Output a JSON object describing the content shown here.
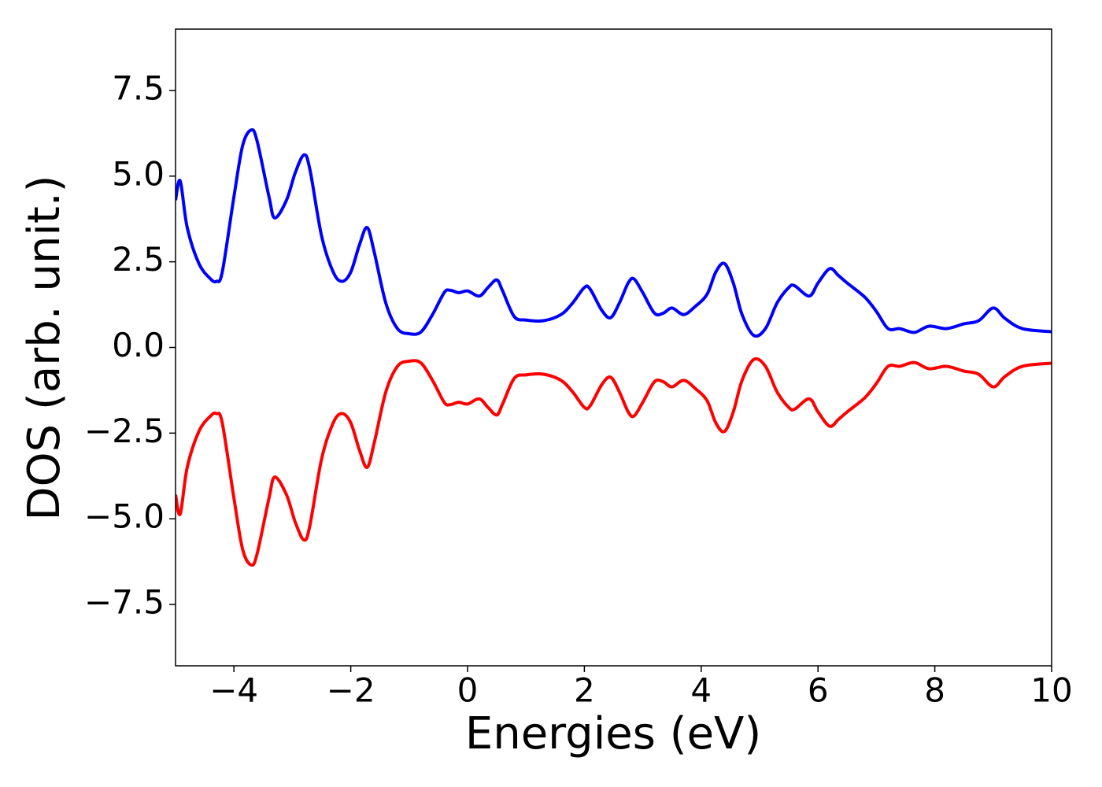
{
  "chart_data": {
    "type": "line",
    "x_label": "Energies (eV)",
    "y_label": "DOS (arb. unit.)",
    "x": [
      -5,
      -4.92,
      -4.8,
      -4.6,
      -4.4,
      -4.3,
      -4.2,
      -4.0,
      -3.85,
      -3.7,
      -3.6,
      -3.4,
      -3.3,
      -3.1,
      -2.95,
      -2.8,
      -2.7,
      -2.5,
      -2.3,
      -2.15,
      -2.0,
      -1.85,
      -1.72,
      -1.6,
      -1.4,
      -1.2,
      -1.0,
      -0.8,
      -0.6,
      -0.4,
      -0.3,
      -0.15,
      0.0,
      0.2,
      0.35,
      0.5,
      0.6,
      0.8,
      1.0,
      1.3,
      1.6,
      1.8,
      2.0,
      2.1,
      2.3,
      2.45,
      2.6,
      2.75,
      2.85,
      3.0,
      3.2,
      3.35,
      3.5,
      3.7,
      3.9,
      4.1,
      4.25,
      4.4,
      4.55,
      4.7,
      4.9,
      5.1,
      5.3,
      5.5,
      5.6,
      5.85,
      6.0,
      6.2,
      6.35,
      6.5,
      6.8,
      7.0,
      7.2,
      7.4,
      7.65,
      7.9,
      8.2,
      8.5,
      8.75,
      9.0,
      9.2,
      9.5,
      10
    ],
    "series": [
      {
        "color": "#0000ff",
        "values": [
          4.3,
          4.86,
          3.5,
          2.45,
          2.0,
          1.93,
          2.2,
          4.4,
          5.9,
          6.35,
          6.0,
          4.4,
          3.78,
          4.3,
          5.1,
          5.62,
          5.2,
          3.26,
          2.2,
          1.93,
          2.2,
          3.0,
          3.5,
          2.8,
          1.3,
          0.55,
          0.4,
          0.45,
          0.96,
          1.6,
          1.67,
          1.6,
          1.65,
          1.5,
          1.75,
          1.97,
          1.65,
          0.9,
          0.8,
          0.78,
          0.96,
          1.3,
          1.75,
          1.7,
          1.08,
          0.87,
          1.3,
          1.88,
          2.0,
          1.6,
          1.0,
          1.0,
          1.15,
          0.96,
          1.2,
          1.55,
          2.2,
          2.45,
          1.88,
          0.96,
          0.35,
          0.55,
          1.3,
          1.75,
          1.8,
          1.5,
          1.88,
          2.3,
          2.1,
          1.88,
          1.47,
          1.05,
          0.55,
          0.55,
          0.44,
          0.62,
          0.55,
          0.69,
          0.78,
          1.15,
          0.85,
          0.55,
          0.46
        ]
      },
      {
        "color": "#ff0000",
        "values": [
          -4.3,
          -4.86,
          -3.5,
          -2.45,
          -2.0,
          -1.93,
          -2.2,
          -4.4,
          -5.9,
          -6.35,
          -6.0,
          -4.4,
          -3.78,
          -4.3,
          -5.1,
          -5.62,
          -5.2,
          -3.26,
          -2.2,
          -1.93,
          -2.2,
          -3.0,
          -3.5,
          -2.8,
          -1.3,
          -0.55,
          -0.4,
          -0.45,
          -0.96,
          -1.6,
          -1.67,
          -1.6,
          -1.65,
          -1.5,
          -1.75,
          -1.97,
          -1.65,
          -0.9,
          -0.8,
          -0.78,
          -0.96,
          -1.3,
          -1.75,
          -1.7,
          -1.08,
          -0.87,
          -1.3,
          -1.88,
          -2.0,
          -1.6,
          -1.0,
          -1.0,
          -1.15,
          -0.96,
          -1.2,
          -1.55,
          -2.2,
          -2.45,
          -1.88,
          -0.96,
          -0.35,
          -0.55,
          -1.3,
          -1.75,
          -1.8,
          -1.5,
          -1.88,
          -2.3,
          -2.1,
          -1.88,
          -1.47,
          -1.05,
          -0.55,
          -0.55,
          -0.44,
          -0.62,
          -0.55,
          -0.69,
          -0.78,
          -1.15,
          -0.85,
          -0.55,
          -0.46
        ]
      }
    ],
    "xlim": [
      -5,
      10
    ],
    "ylim": [
      -9.29,
      9.29
    ],
    "xticks": [
      {
        "value": -4,
        "label": "−4"
      },
      {
        "value": -2,
        "label": "−2"
      },
      0,
      2,
      4,
      6,
      8,
      10
    ],
    "yticks": [
      {
        "value": -7.5,
        "label": "−7.5"
      },
      {
        "value": -5,
        "label": "−5.0"
      },
      {
        "value": -2.5,
        "label": "−2.5"
      },
      {
        "value": 0,
        "label": "0.0"
      },
      2.5,
      {
        "value": 5,
        "label": "5.0"
      },
      7.5
    ],
    "grid": false
  }
}
